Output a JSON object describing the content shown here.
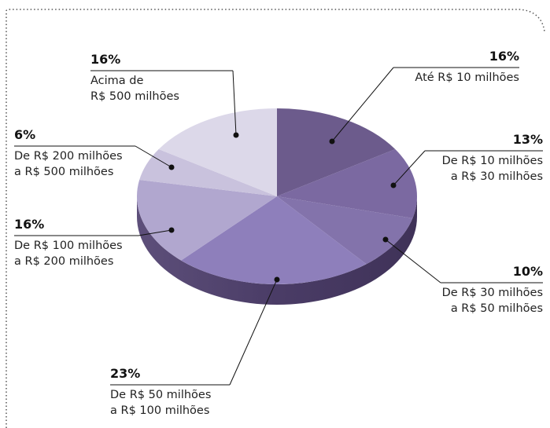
{
  "chart_data": {
    "type": "pie",
    "categories": [
      "Até R$ 10 milhões",
      "De R$ 10 milhões\na R$ 30 milhões",
      "De R$ 30 milhões\na R$ 50 milhões",
      "De R$ 50 milhões\na R$ 100 milhões",
      "De R$ 100 milhões\na R$ 200 milhões",
      "De R$ 200 milhões\na R$ 500 milhões",
      "Acima de\nR$ 500 milhões"
    ],
    "values": [
      16,
      13,
      10,
      23,
      16,
      6,
      16
    ],
    "value_labels": [
      "16%",
      "13%",
      "10%",
      "23%",
      "16%",
      "6%",
      "16%"
    ],
    "colors": [
      "#6c5b8c",
      "#7b69a1",
      "#8373ab",
      "#8e7fbb",
      "#b1a7cf",
      "#c9c2dd",
      "#dcd8e9"
    ]
  }
}
